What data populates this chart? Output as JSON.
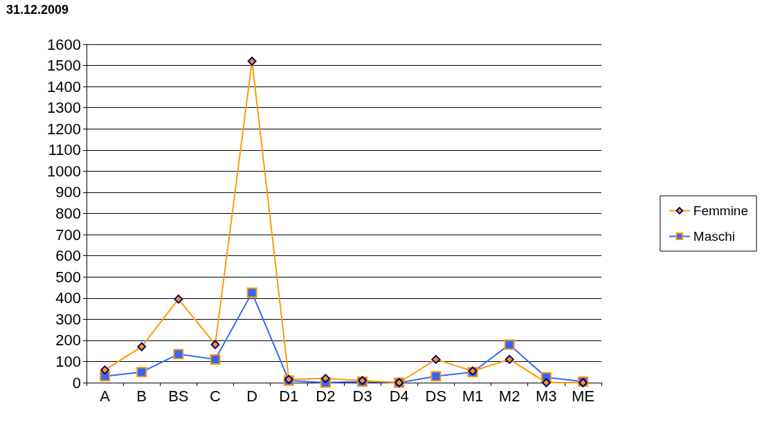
{
  "chart_data": {
    "type": "line",
    "title": "31.12.2009",
    "categories": [
      "A",
      "B",
      "BS",
      "C",
      "D",
      "D1",
      "D2",
      "D3",
      "D4",
      "DS",
      "M1",
      "M2",
      "M3",
      "ME"
    ],
    "series": [
      {
        "name": "Femmine",
        "color": "#ff9900",
        "marker": "diamond",
        "values": [
          60,
          170,
          395,
          180,
          1520,
          15,
          20,
          10,
          0,
          110,
          55,
          110,
          0,
          0
        ]
      },
      {
        "name": "Maschi",
        "color": "#3366ff",
        "marker": "square",
        "values": [
          30,
          50,
          135,
          110,
          425,
          10,
          0,
          5,
          0,
          30,
          50,
          180,
          25,
          5
        ]
      }
    ],
    "ylim": [
      0,
      1600
    ],
    "yticks": [
      0,
      100,
      200,
      300,
      400,
      500,
      600,
      700,
      800,
      900,
      1000,
      1100,
      1200,
      1300,
      1400,
      1500,
      1600
    ],
    "grid": "y",
    "legend": "right"
  }
}
